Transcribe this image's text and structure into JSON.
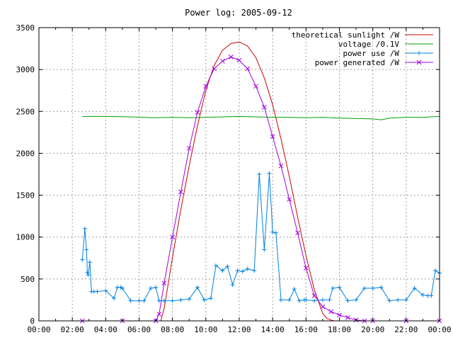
{
  "chart_data": {
    "type": "line",
    "title": "Power log: 2005-09-12",
    "xlabel": "",
    "ylabel": "",
    "xlim": [
      0,
      24
    ],
    "ylim": [
      0,
      3500
    ],
    "x_ticks": [
      "00:00",
      "02:00",
      "04:00",
      "06:00",
      "08:00",
      "10:00",
      "12:00",
      "14:00",
      "16:00",
      "18:00",
      "20:00",
      "22:00",
      "00:00"
    ],
    "y_ticks": [
      0,
      500,
      1000,
      1500,
      2000,
      2500,
      3000,
      3500
    ],
    "grid": true,
    "legend_position": "top-right",
    "series": [
      {
        "name": "theoretical sunlight /W",
        "color": "#cc0000",
        "marker": "none",
        "x": [
          7.3,
          7.5,
          7.75,
          8,
          8.5,
          9,
          9.5,
          10,
          10.5,
          11,
          11.5,
          12,
          12.5,
          13,
          13.5,
          14,
          14.5,
          15,
          15.5,
          16,
          16.5,
          17,
          17.25,
          17.5,
          17.7
        ],
        "y": [
          0,
          150,
          450,
          760,
          1330,
          1850,
          2330,
          2750,
          3050,
          3230,
          3310,
          3330,
          3280,
          3140,
          2900,
          2580,
          2170,
          1720,
          1240,
          780,
          370,
          90,
          30,
          10,
          0
        ]
      },
      {
        "name": "voltage /0.1V",
        "color": "#00a000",
        "marker": "none",
        "x": [
          2.6,
          4,
          5.5,
          7,
          8,
          9,
          10,
          11,
          12,
          13,
          14,
          15,
          16,
          17,
          18,
          19,
          20,
          20.5,
          21,
          22,
          23,
          24
        ],
        "y": [
          2440,
          2440,
          2435,
          2425,
          2430,
          2425,
          2430,
          2435,
          2440,
          2435,
          2430,
          2430,
          2425,
          2430,
          2420,
          2415,
          2410,
          2400,
          2420,
          2430,
          2430,
          2440
        ]
      },
      {
        "name": "power use /W",
        "color": "#0080e0",
        "marker": "plus",
        "x": [
          2.6,
          2.75,
          2.85,
          2.9,
          2.95,
          3.05,
          3.15,
          3.3,
          3.5,
          4,
          4.5,
          4.7,
          4.9,
          5,
          5.5,
          6,
          6.3,
          6.7,
          7,
          7.2,
          7.5,
          8,
          8.5,
          9,
          9.5,
          9.9,
          10.3,
          10.6,
          11,
          11.3,
          11.6,
          11.9,
          12.2,
          12.5,
          12.9,
          13.2,
          13.5,
          13.8,
          14,
          14.2,
          14.5,
          15,
          15.3,
          15.6,
          15.9,
          16,
          16.5,
          17,
          17.4,
          17.6,
          18,
          18.5,
          19,
          19.5,
          20,
          20.5,
          21,
          21.5,
          22,
          22.5,
          23,
          23.3,
          23.5,
          23.75,
          24
        ],
        "y": [
          730,
          1100,
          850,
          580,
          550,
          700,
          350,
          350,
          350,
          360,
          270,
          400,
          400,
          390,
          240,
          240,
          240,
          390,
          400,
          240,
          240,
          240,
          250,
          260,
          400,
          250,
          270,
          660,
          600,
          650,
          430,
          600,
          590,
          620,
          600,
          1750,
          850,
          1760,
          1060,
          1050,
          250,
          250,
          380,
          240,
          250,
          250,
          240,
          250,
          250,
          390,
          400,
          240,
          250,
          390,
          390,
          400,
          240,
          250,
          250,
          390,
          310,
          300,
          300,
          600,
          570
        ]
      },
      {
        "name": "power generated /W",
        "color": "#a000e0",
        "marker": "cross",
        "x": [
          2.6,
          5,
          7,
          7.2,
          7.5,
          8,
          8.5,
          9,
          9.5,
          10,
          10.5,
          11,
          11.5,
          12,
          12.5,
          13,
          13.5,
          14,
          14.5,
          15,
          15.5,
          16,
          16.5,
          17,
          17.5,
          18,
          18.5,
          19,
          19.5,
          20,
          22,
          24
        ],
        "y": [
          0,
          0,
          0,
          80,
          450,
          1000,
          1540,
          2060,
          2490,
          2800,
          3010,
          3100,
          3150,
          3110,
          3010,
          2800,
          2550,
          2200,
          1850,
          1450,
          1050,
          630,
          300,
          170,
          110,
          70,
          40,
          10,
          0,
          0,
          0,
          0
        ]
      }
    ]
  }
}
